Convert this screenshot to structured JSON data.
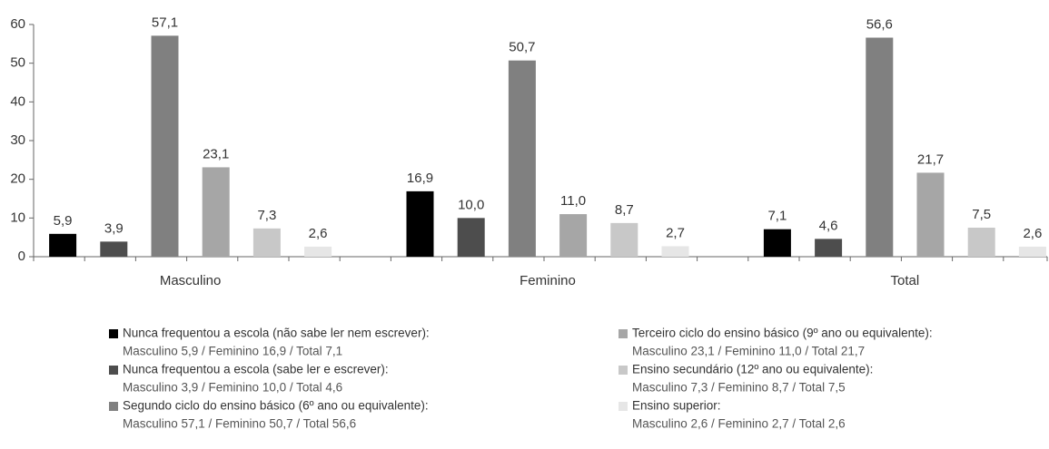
{
  "chart_data": {
    "type": "bar",
    "categories": [
      "Masculino",
      "Feminino",
      "Total"
    ],
    "ylim": [
      0,
      60
    ],
    "yticks": [
      0,
      10,
      20,
      30,
      40,
      50,
      60
    ],
    "series": [
      {
        "name": "Nunca frequentou a escola (não sabe ler nem escrever):",
        "color": "#000000",
        "values": [
          5.9,
          16.9,
          7.1
        ],
        "value_labels": [
          "5,9",
          "16,9",
          "7,1"
        ]
      },
      {
        "name": "Nunca frequentou a escola (sabe ler e escrever):",
        "color": "#4d4d4d",
        "values": [
          3.9,
          10.0,
          4.6
        ],
        "value_labels": [
          "3,9",
          "10,0",
          "4,6"
        ]
      },
      {
        "name": "Segundo ciclo do ensino básico (6º ano ou equivalente):",
        "color": "#808080",
        "values": [
          57.1,
          50.7,
          56.6
        ],
        "value_labels": [
          "57,1",
          "50,7",
          "56,6"
        ]
      },
      {
        "name": "Terceiro ciclo do ensino básico (9º ano ou equivalente):",
        "color": "#a6a6a6",
        "values": [
          23.1,
          11.0,
          21.7
        ],
        "value_labels": [
          "23,1",
          "11,0",
          "21,7"
        ]
      },
      {
        "name": "Ensino secundário (12º ano ou equivalente):",
        "color": "#c8c8c8",
        "values": [
          7.3,
          8.7,
          7.5
        ],
        "value_labels": [
          "7,3",
          "8,7",
          "7,5"
        ]
      },
      {
        "name": "Ensino superior:",
        "color": "#e6e6e6",
        "values": [
          2.6,
          2.7,
          2.6
        ],
        "value_labels": [
          "2,6",
          "2,7",
          "2,6"
        ]
      }
    ],
    "legend_details": [
      "Masculino 5,9 / Feminino 16,9 / Total 7,1",
      "Masculino 3,9 / Feminino 10,0 / Total 4,6",
      "Masculino 57,1 / Feminino 50,7 / Total 56,6",
      "Masculino 23,1 / Feminino 11,0 / Total 21,7",
      "Masculino 7,3 / Feminino 8,7 / Total 7,5",
      "Masculino 2,6 / Feminino 2,7 / Total 2,6"
    ]
  }
}
